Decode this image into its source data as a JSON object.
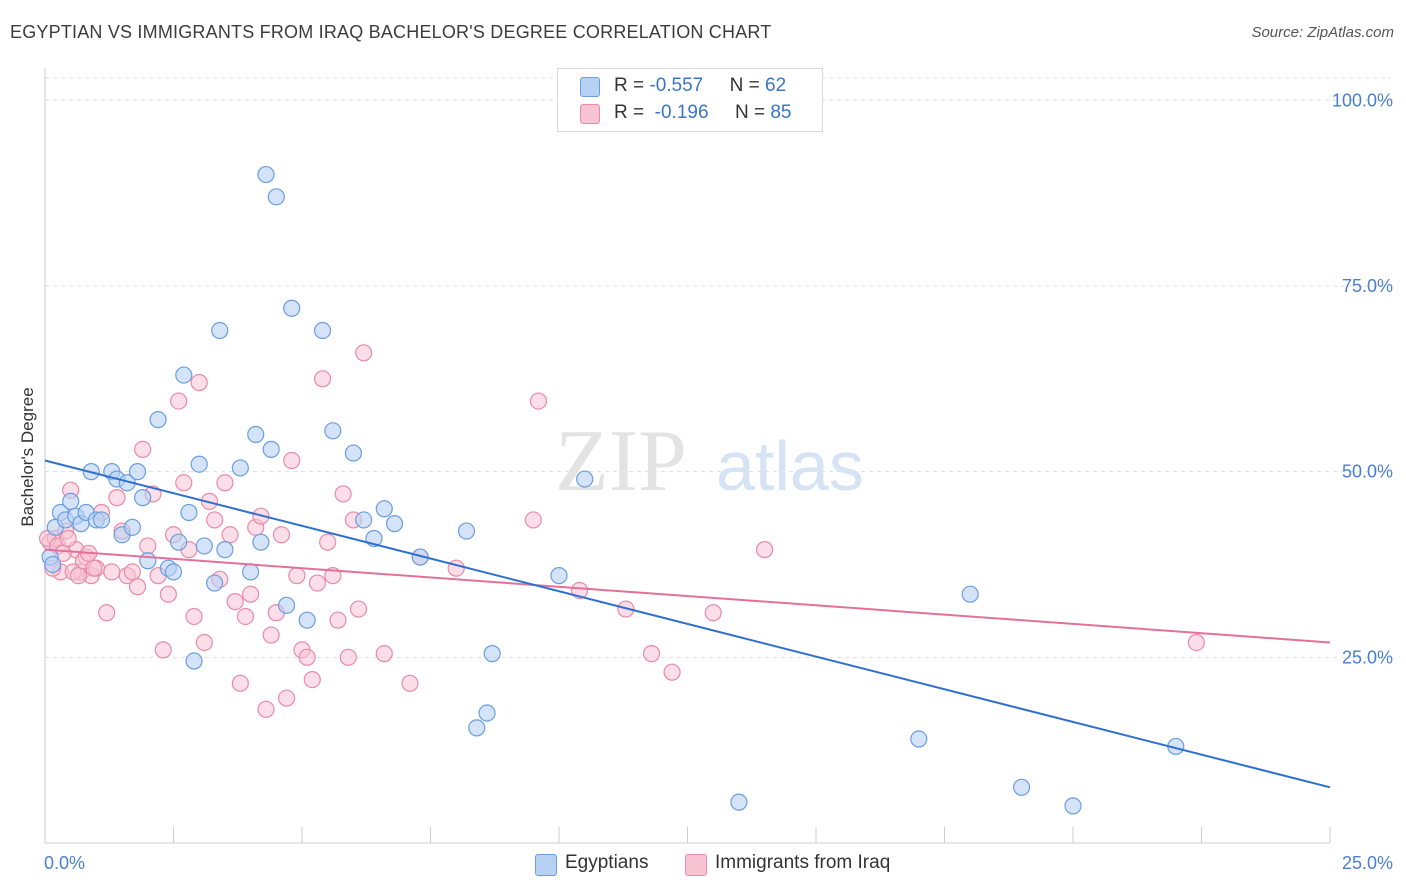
{
  "header": {
    "title": "EGYPTIAN VS IMMIGRANTS FROM IRAQ BACHELOR'S DEGREE CORRELATION CHART",
    "source": "Source: ZipAtlas.com"
  },
  "watermark": {
    "zip": "ZIP",
    "atlas": "atlas"
  },
  "colors": {
    "blue_fill": "#b7d1f3",
    "blue_stroke": "#6a9ee0",
    "blue_line": "#2f6fcf",
    "pink_fill": "#f8c3d3",
    "pink_stroke": "#e98aa8",
    "pink_line": "#e4709a",
    "axis_label": "#4a7fcf",
    "grid": "#dddddd"
  },
  "legend": {
    "rows": [
      {
        "r_label": "R = ",
        "r_value": "-0.557",
        "n_label": "N = ",
        "n_value": "62"
      },
      {
        "r_label": "R = ",
        "r_value": "-0.196",
        "n_label": "N = ",
        "n_value": "85"
      }
    ]
  },
  "bottom_legend": {
    "series1": "Egyptians",
    "series2": "Immigrants from Iraq"
  },
  "chart_data": {
    "type": "scatter",
    "title": "EGYPTIAN VS IMMIGRANTS FROM IRAQ BACHELOR'S DEGREE CORRELATION CHART",
    "xlabel": "",
    "ylabel": "Bachelor's Degree",
    "xlim": [
      0,
      25
    ],
    "ylim": [
      0,
      103
    ],
    "x_tick_labels": [
      "0.0%",
      "25.0%"
    ],
    "y_ticks": [
      25,
      50,
      75,
      100
    ],
    "y_tick_labels": [
      "25.0%",
      "50.0%",
      "75.0%",
      "100.0%"
    ],
    "grid": true,
    "legend_position": "top-center",
    "series": [
      {
        "name": "Egyptians",
        "r": -0.557,
        "n": 62,
        "trend": {
          "x": [
            0,
            25
          ],
          "y": [
            51.5,
            7.5
          ]
        },
        "points": [
          [
            0.1,
            38.5
          ],
          [
            0.2,
            42.5
          ],
          [
            0.3,
            44.5
          ],
          [
            0.4,
            43.5
          ],
          [
            0.5,
            46
          ],
          [
            0.6,
            44
          ],
          [
            0.7,
            43
          ],
          [
            0.8,
            44.5
          ],
          [
            0.9,
            50
          ],
          [
            1.0,
            43.5
          ],
          [
            1.1,
            43.5
          ],
          [
            1.3,
            50
          ],
          [
            1.4,
            49
          ],
          [
            1.5,
            41.5
          ],
          [
            1.6,
            48.5
          ],
          [
            1.7,
            42.5
          ],
          [
            1.8,
            50
          ],
          [
            1.9,
            46.5
          ],
          [
            2.0,
            38
          ],
          [
            2.2,
            57
          ],
          [
            2.4,
            37
          ],
          [
            2.5,
            36.5
          ],
          [
            2.6,
            40.5
          ],
          [
            2.7,
            63
          ],
          [
            2.8,
            44.5
          ],
          [
            2.9,
            24.5
          ],
          [
            3.0,
            51
          ],
          [
            3.1,
            40
          ],
          [
            3.3,
            35
          ],
          [
            3.4,
            69
          ],
          [
            3.5,
            39.5
          ],
          [
            3.8,
            50.5
          ],
          [
            4.0,
            36.5
          ],
          [
            4.1,
            55
          ],
          [
            4.2,
            40.5
          ],
          [
            4.3,
            90
          ],
          [
            4.4,
            53
          ],
          [
            4.5,
            87
          ],
          [
            4.7,
            32
          ],
          [
            4.8,
            72
          ],
          [
            5.1,
            30
          ],
          [
            5.4,
            69
          ],
          [
            5.6,
            55.5
          ],
          [
            6.0,
            52.5
          ],
          [
            6.2,
            43.5
          ],
          [
            6.4,
            41
          ],
          [
            6.6,
            45
          ],
          [
            6.8,
            43
          ],
          [
            7.3,
            38.5
          ],
          [
            8.2,
            42
          ],
          [
            8.4,
            15.5
          ],
          [
            8.6,
            17.5
          ],
          [
            8.7,
            25.5
          ],
          [
            10.0,
            36
          ],
          [
            10.5,
            49
          ],
          [
            13.5,
            5.5
          ],
          [
            17.0,
            14
          ],
          [
            18.0,
            33.5
          ],
          [
            19.0,
            7.5
          ],
          [
            20.0,
            5
          ],
          [
            22.0,
            13
          ],
          [
            0.15,
            37.5
          ]
        ]
      },
      {
        "name": "Immigrants from Iraq",
        "r": -0.196,
        "n": 85,
        "trend": {
          "x": [
            0,
            25
          ],
          "y": [
            39.5,
            27
          ]
        },
        "points": [
          [
            0.1,
            40.5
          ],
          [
            0.2,
            41
          ],
          [
            0.3,
            36.5
          ],
          [
            0.4,
            42
          ],
          [
            0.5,
            47.5
          ],
          [
            0.6,
            39.5
          ],
          [
            0.7,
            36.5
          ],
          [
            0.8,
            38.5
          ],
          [
            0.9,
            36
          ],
          [
            1.0,
            37
          ],
          [
            1.1,
            44.5
          ],
          [
            1.2,
            31
          ],
          [
            1.3,
            36.5
          ],
          [
            1.4,
            46.5
          ],
          [
            1.5,
            42
          ],
          [
            1.6,
            36
          ],
          [
            1.7,
            36.5
          ],
          [
            1.8,
            34.5
          ],
          [
            1.9,
            53
          ],
          [
            2.0,
            40
          ],
          [
            2.1,
            47
          ],
          [
            2.2,
            36
          ],
          [
            2.3,
            26
          ],
          [
            2.4,
            33.5
          ],
          [
            2.5,
            41.5
          ],
          [
            2.6,
            59.5
          ],
          [
            2.7,
            48.5
          ],
          [
            2.8,
            39.5
          ],
          [
            2.9,
            30.5
          ],
          [
            3.0,
            62
          ],
          [
            3.1,
            27
          ],
          [
            3.2,
            46
          ],
          [
            3.3,
            43.5
          ],
          [
            3.4,
            35.5
          ],
          [
            3.5,
            48.5
          ],
          [
            3.6,
            41.5
          ],
          [
            3.7,
            32.5
          ],
          [
            3.8,
            21.5
          ],
          [
            3.9,
            30.5
          ],
          [
            4.0,
            33.5
          ],
          [
            4.1,
            42.5
          ],
          [
            4.2,
            44
          ],
          [
            4.3,
            18
          ],
          [
            4.4,
            28
          ],
          [
            4.5,
            31
          ],
          [
            4.6,
            41.5
          ],
          [
            4.7,
            19.5
          ],
          [
            4.8,
            51.5
          ],
          [
            4.9,
            36
          ],
          [
            5.0,
            26
          ],
          [
            5.1,
            25
          ],
          [
            5.2,
            22
          ],
          [
            5.3,
            35
          ],
          [
            5.4,
            62.5
          ],
          [
            5.5,
            40.5
          ],
          [
            5.6,
            36
          ],
          [
            5.7,
            30
          ],
          [
            5.8,
            47
          ],
          [
            5.9,
            25
          ],
          [
            6.0,
            43.5
          ],
          [
            6.1,
            31.5
          ],
          [
            6.2,
            66
          ],
          [
            6.6,
            25.5
          ],
          [
            7.1,
            21.5
          ],
          [
            7.3,
            38.5
          ],
          [
            8.0,
            37
          ],
          [
            9.5,
            43.5
          ],
          [
            9.6,
            59.5
          ],
          [
            10.4,
            34
          ],
          [
            11.3,
            31.5
          ],
          [
            11.8,
            25.5
          ],
          [
            12.2,
            23
          ],
          [
            13.0,
            31
          ],
          [
            14.0,
            39.5
          ],
          [
            22.4,
            27
          ],
          [
            0.05,
            41
          ],
          [
            0.15,
            37
          ],
          [
            0.25,
            40
          ],
          [
            0.35,
            39
          ],
          [
            0.45,
            41
          ],
          [
            0.55,
            36.5
          ],
          [
            0.65,
            36
          ],
          [
            0.75,
            38
          ],
          [
            0.85,
            39
          ],
          [
            0.95,
            37
          ]
        ]
      }
    ]
  }
}
